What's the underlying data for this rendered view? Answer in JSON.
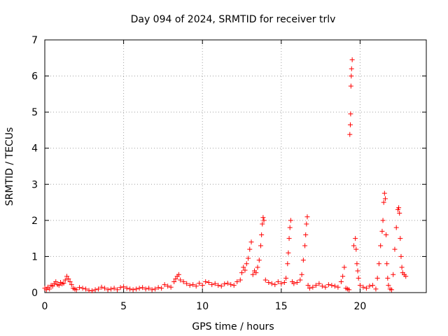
{
  "chart_data": {
    "type": "scatter",
    "title": "Day 094 of 2024, SRMTID for receiver trlv",
    "xlabel": "GPS time / hours",
    "ylabel": "SRMTID / TECUs",
    "xlim": [
      0,
      24.2
    ],
    "ylim": [
      0,
      7
    ],
    "xticks": [
      0,
      5,
      10,
      15,
      20
    ],
    "yticks": [
      0,
      1,
      2,
      3,
      4,
      5,
      6,
      7
    ],
    "grid": true,
    "marker": "+",
    "series": [
      {
        "name": "SRMTID",
        "color": "#ff0000",
        "x": [
          0.0,
          0.1,
          0.2,
          0.3,
          0.4,
          0.5,
          0.6,
          0.7,
          0.8,
          0.9,
          1.0,
          1.1,
          1.2,
          1.3,
          1.4,
          1.5,
          1.6,
          1.7,
          1.8,
          1.9,
          2.0,
          2.2,
          2.4,
          2.6,
          2.8,
          3.0,
          3.2,
          3.4,
          3.6,
          3.8,
          4.0,
          4.2,
          4.4,
          4.6,
          4.8,
          5.0,
          5.2,
          5.4,
          5.6,
          5.8,
          6.0,
          6.2,
          6.4,
          6.6,
          6.8,
          7.0,
          7.2,
          7.4,
          7.6,
          7.8,
          8.0,
          8.2,
          8.3,
          8.4,
          8.5,
          8.6,
          8.8,
          9.0,
          9.2,
          9.4,
          9.6,
          9.8,
          10.0,
          10.2,
          10.4,
          10.6,
          10.8,
          11.0,
          11.2,
          11.4,
          11.6,
          11.8,
          12.0,
          12.2,
          12.4,
          12.5,
          12.6,
          12.7,
          12.8,
          12.9,
          13.0,
          13.1,
          13.2,
          13.3,
          13.4,
          13.5,
          13.6,
          13.7,
          13.75,
          13.8,
          13.85,
          13.9,
          14.0,
          14.2,
          14.4,
          14.6,
          14.8,
          15.0,
          15.2,
          15.3,
          15.4,
          15.45,
          15.5,
          15.55,
          15.6,
          15.7,
          15.8,
          16.0,
          16.2,
          16.3,
          16.4,
          16.5,
          16.55,
          16.6,
          16.65,
          16.7,
          16.8,
          17.0,
          17.2,
          17.4,
          17.6,
          17.8,
          18.0,
          18.2,
          18.4,
          18.6,
          18.8,
          18.9,
          19.0,
          19.1,
          19.2,
          19.3,
          19.35,
          19.38,
          19.4,
          19.42,
          19.44,
          19.46,
          19.5,
          19.6,
          19.7,
          19.75,
          19.8,
          19.85,
          19.9,
          20.0,
          20.2,
          20.4,
          20.6,
          20.8,
          21.0,
          21.1,
          21.2,
          21.3,
          21.4,
          21.45,
          21.5,
          21.55,
          21.6,
          21.65,
          21.7,
          21.75,
          21.8,
          21.9,
          22.0,
          22.1,
          22.2,
          22.3,
          22.4,
          22.45,
          22.5,
          22.55,
          22.6,
          22.65,
          22.7,
          22.8,
          22.9
        ],
        "y": [
          0.12,
          0.08,
          0.15,
          0.1,
          0.2,
          0.18,
          0.25,
          0.3,
          0.22,
          0.2,
          0.28,
          0.24,
          0.26,
          0.35,
          0.45,
          0.38,
          0.3,
          0.22,
          0.12,
          0.1,
          0.08,
          0.14,
          0.12,
          0.1,
          0.06,
          0.05,
          0.08,
          0.1,
          0.15,
          0.12,
          0.08,
          0.1,
          0.12,
          0.08,
          0.14,
          0.16,
          0.12,
          0.1,
          0.08,
          0.1,
          0.12,
          0.14,
          0.1,
          0.12,
          0.08,
          0.1,
          0.14,
          0.12,
          0.22,
          0.18,
          0.15,
          0.3,
          0.38,
          0.45,
          0.5,
          0.35,
          0.3,
          0.25,
          0.2,
          0.22,
          0.18,
          0.26,
          0.2,
          0.3,
          0.28,
          0.22,
          0.25,
          0.2,
          0.18,
          0.24,
          0.26,
          0.22,
          0.2,
          0.3,
          0.35,
          0.55,
          0.7,
          0.62,
          0.8,
          0.95,
          1.2,
          1.4,
          0.5,
          0.6,
          0.55,
          0.7,
          0.9,
          1.3,
          1.6,
          1.9,
          2.08,
          2.0,
          0.35,
          0.28,
          0.25,
          0.22,
          0.3,
          0.25,
          0.28,
          0.4,
          0.8,
          1.1,
          1.5,
          1.8,
          2.0,
          0.3,
          0.25,
          0.28,
          0.35,
          0.5,
          0.9,
          1.3,
          1.6,
          1.9,
          2.1,
          0.2,
          0.12,
          0.15,
          0.2,
          0.25,
          0.18,
          0.15,
          0.22,
          0.2,
          0.18,
          0.15,
          0.3,
          0.45,
          0.7,
          0.12,
          0.1,
          0.08,
          4.38,
          4.65,
          4.95,
          5.72,
          6.0,
          6.2,
          6.45,
          1.3,
          1.5,
          1.2,
          0.8,
          0.6,
          0.4,
          0.2,
          0.15,
          0.12,
          0.18,
          0.2,
          0.1,
          0.4,
          0.8,
          1.3,
          1.7,
          2.0,
          2.5,
          2.75,
          2.6,
          1.6,
          0.8,
          0.4,
          0.2,
          0.1,
          0.08,
          0.5,
          1.2,
          1.8,
          2.3,
          2.35,
          2.2,
          1.5,
          1.0,
          0.7,
          0.55,
          0.5,
          0.45
        ]
      }
    ]
  }
}
